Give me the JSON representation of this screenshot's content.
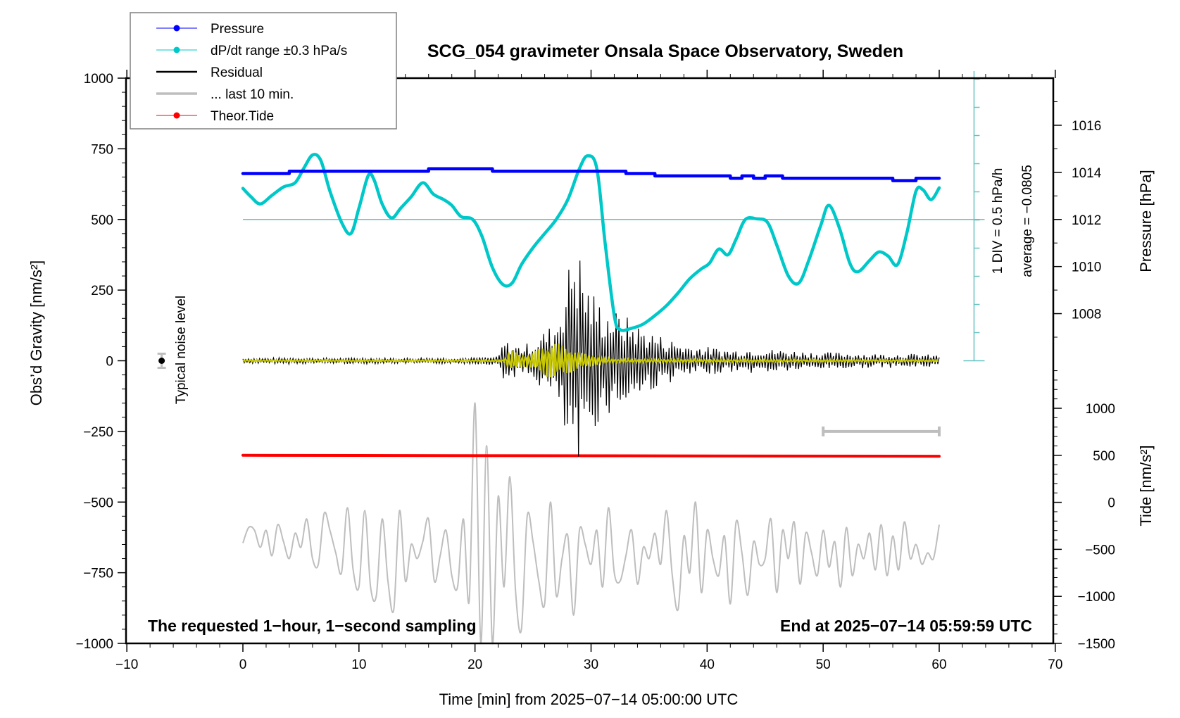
{
  "chart_data": {
    "type": "line",
    "title": "SCG_054 gravimeter Onsala Space Observatory, Sweden",
    "xlabel": "Time [min] from 2025−07−14 05:00:00 UTC",
    "ylabel": "Obs’d Gravity [nm/s²]",
    "xlim": [
      -10,
      70
    ],
    "ylim": [
      -1000,
      1000
    ],
    "x_ticks": [
      "−10",
      "0",
      "10",
      "20",
      "30",
      "40",
      "50",
      "60",
      "70"
    ],
    "x_tick_values": [
      -10,
      0,
      10,
      20,
      30,
      40,
      50,
      60,
      70
    ],
    "y_ticks": [
      "1000",
      "750",
      "500",
      "250",
      "0",
      "−250",
      "−500",
      "−750",
      "−1000"
    ],
    "y_tick_values": [
      1000,
      750,
      500,
      250,
      0,
      -250,
      -500,
      -750,
      -1000
    ],
    "right_axes": {
      "pressure": {
        "label": "Pressure [hPa]",
        "ticks": [
          "1016",
          "1014",
          "1012",
          "1010",
          "1008"
        ],
        "tick_values": [
          1016,
          1014,
          1012,
          1010,
          1008
        ],
        "range_shown": [
          1007,
          1018
        ]
      },
      "tide": {
        "label": "Tide [nm/s²]",
        "ticks": [
          "1000",
          "500",
          "0",
          "−500",
          "−1000",
          "−1500"
        ],
        "tick_values": [
          1000,
          500,
          0,
          -500,
          -1000,
          -1500
        ],
        "range_shown": [
          -1500,
          1500
        ]
      }
    },
    "dpdt_scale": {
      "div_label": "1 DIV = 0.5 hPa/h",
      "average_label": "average = −0.0805",
      "baseline_gravity": 500
    },
    "legend": {
      "position": "top-left",
      "entries": [
        {
          "label": "Pressure",
          "color": "#0000ff",
          "marker": "dot"
        },
        {
          "label": "dP/dt range ±0.3 hPa/s",
          "color": "#00c8c8",
          "marker": "dot"
        },
        {
          "label": "Residual",
          "color": "#000000",
          "marker": "line"
        },
        {
          "label": "... last 10 min.",
          "color": "#bebebe",
          "marker": "line"
        },
        {
          "label": "Theor.Tide",
          "color": "#ff0000",
          "marker": "dot"
        }
      ]
    },
    "annotations": {
      "noise_label": "Typical noise level",
      "noise_point": {
        "x": -7,
        "y": 0,
        "err": 25
      },
      "bottom_left": "The requested 1−hour, 1−second sampling",
      "bottom_right": "End at 2025−07−14 05:59:59 UTC",
      "last10_bar": {
        "x_start": 50,
        "x_end": 60,
        "y": -250
      }
    },
    "series": [
      {
        "name": "Pressure",
        "axis": "pressure",
        "color": "#0000ff",
        "x": [
          0,
          4,
          4,
          16,
          16,
          21.5,
          21.5,
          33,
          33,
          35.5,
          35.5,
          42,
          42,
          43,
          43,
          44,
          44,
          45,
          45,
          46.5,
          46.5,
          56,
          56,
          58,
          58,
          60
        ],
        "values": [
          1013.95,
          1013.95,
          1014.05,
          1014.05,
          1014.15,
          1014.15,
          1014.05,
          1014.05,
          1013.95,
          1013.95,
          1013.85,
          1013.85,
          1013.75,
          1013.75,
          1013.85,
          1013.85,
          1013.75,
          1013.75,
          1013.85,
          1013.85,
          1013.75,
          1013.75,
          1013.65,
          1013.65,
          1013.75,
          1013.75
        ]
      },
      {
        "name": "dP/dt",
        "axis": "gravity",
        "color": "#00c8c8",
        "x": [
          0,
          0.7,
          1.5,
          2.5,
          3.5,
          4.5,
          5.3,
          6,
          6.7,
          7.5,
          8.5,
          9.3,
          10,
          10.8,
          11.3,
          12,
          12.8,
          13.6,
          14.5,
          15.5,
          16.4,
          17.3,
          18,
          18.8,
          19.8,
          20.6,
          21.5,
          22.4,
          23.2,
          24,
          25,
          26,
          27,
          28,
          29,
          29.7,
          30.5,
          31.2,
          32,
          32.5,
          33.5,
          34.5,
          35.5,
          36.5,
          37.5,
          38.5,
          39.5,
          40.2,
          41,
          41.8,
          42.5,
          43.3,
          44.3,
          45.2,
          46,
          47,
          47.9,
          48.8,
          49.8,
          50.5,
          51.4,
          52.3,
          53,
          54,
          54.8,
          55.6,
          56.4,
          57.2,
          58,
          58.6,
          59.3,
          60
        ],
        "values": [
          610,
          580,
          555,
          585,
          615,
          630,
          685,
          728,
          710,
          600,
          490,
          450,
          540,
          655,
          640,
          555,
          505,
          540,
          580,
          630,
          590,
          570,
          550,
          510,
          500,
          440,
          330,
          270,
          275,
          340,
          400,
          450,
          500,
          570,
          680,
          725,
          680,
          420,
          160,
          110,
          115,
          130,
          160,
          195,
          240,
          290,
          325,
          345,
          395,
          375,
          430,
          500,
          502,
          490,
          410,
          300,
          275,
          360,
          480,
          550,
          470,
          345,
          315,
          355,
          385,
          370,
          340,
          450,
          600,
          605,
          570,
          612
        ]
      },
      {
        "name": "Residual envelope",
        "axis": "gravity",
        "color": "#000000",
        "x": [
          0,
          2,
          4,
          6,
          8,
          10,
          12,
          14,
          16,
          18,
          20,
          22,
          22.5,
          23,
          24,
          25,
          26,
          27,
          27.5,
          28,
          28.5,
          29,
          29.5,
          30,
          31,
          32,
          33,
          34,
          35,
          36,
          38,
          40,
          42,
          44,
          46,
          48,
          50,
          52,
          54,
          56,
          58,
          60
        ],
        "values": [
          10,
          10,
          12,
          10,
          10,
          12,
          10,
          10,
          12,
          10,
          12,
          15,
          80,
          60,
          55,
          70,
          110,
          140,
          240,
          320,
          470,
          400,
          300,
          260,
          200,
          180,
          160,
          130,
          110,
          90,
          60,
          50,
          40,
          45,
          40,
          35,
          30,
          30,
          25,
          25,
          25,
          20
        ]
      },
      {
        "name": "Theor.Tide",
        "axis": "tide",
        "color": "#ff0000",
        "x": [
          0,
          60
        ],
        "values": [
          500,
          490
        ]
      },
      {
        "name": "... last 10 min.",
        "axis": "gravity",
        "color": "#bebebe",
        "x": [
          0,
          0.5,
          1,
          1.5,
          2,
          2.5,
          3,
          3.5,
          4,
          4.5,
          5,
          5.5,
          6,
          6.5,
          7,
          7.5,
          8,
          8.5,
          9,
          9.5,
          10,
          10.5,
          11,
          11.5,
          12,
          12.5,
          13,
          13.5,
          14,
          14.5,
          15,
          15.5,
          16,
          16.5,
          17,
          17.5,
          18,
          18.5,
          19,
          19.5,
          20,
          20.5,
          21,
          21.5,
          22,
          22.5,
          23,
          23.5,
          24,
          24.5,
          25,
          25.5,
          26,
          26.5,
          27,
          27.5,
          28,
          28.5,
          29,
          29.5,
          30,
          30.5,
          31,
          31.5,
          32,
          32.5,
          33,
          33.5,
          34,
          34.5,
          35,
          35.5,
          36,
          36.5,
          37,
          37.5,
          38,
          38.5,
          39,
          39.5,
          40,
          40.5,
          41,
          41.5,
          42,
          42.5,
          43,
          43.5,
          44,
          44.5,
          45,
          45.5,
          46,
          46.5,
          47,
          47.5,
          48,
          48.5,
          49,
          49.5,
          50,
          50.5,
          51,
          51.5,
          52,
          52.5,
          53,
          53.5,
          54,
          54.5,
          55,
          55.5,
          56,
          56.5,
          57,
          57.5,
          58,
          58.5,
          59,
          59.5,
          60
        ],
        "values": [
          -645,
          -590,
          -600,
          -660,
          -600,
          -690,
          -580,
          -640,
          -700,
          -610,
          -660,
          -560,
          -700,
          -720,
          -540,
          -600,
          -680,
          -750,
          -520,
          -740,
          -800,
          -530,
          -800,
          -830,
          -560,
          -780,
          -880,
          -530,
          -780,
          -650,
          -700,
          -640,
          -560,
          -780,
          -690,
          -600,
          -760,
          -800,
          -560,
          -850,
          -150,
          -1000,
          -300,
          -1000,
          -480,
          -800,
          -410,
          -820,
          -950,
          -550,
          -640,
          -780,
          -860,
          -500,
          -830,
          -700,
          -620,
          -900,
          -600,
          -650,
          -720,
          -600,
          -800,
          -520,
          -750,
          -780,
          -690,
          -600,
          -790,
          -660,
          -700,
          -610,
          -720,
          -530,
          -760,
          -880,
          -620,
          -750,
          -500,
          -820,
          -600,
          -700,
          -760,
          -620,
          -860,
          -570,
          -680,
          -830,
          -640,
          -720,
          -700,
          -560,
          -820,
          -600,
          -700,
          -570,
          -790,
          -610,
          -680,
          -760,
          -600,
          -730,
          -640,
          -800,
          -590,
          -760,
          -650,
          -700,
          -610,
          -740,
          -580,
          -760,
          -620,
          -740,
          -570,
          -700,
          -650,
          -720,
          -680,
          -700,
          -580
        ]
      },
      {
        "name": "Filtered (yellow)",
        "axis": "gravity",
        "color": "#c8c800",
        "x": [
          0,
          22.5,
          23,
          24,
          25,
          26,
          27,
          28,
          29,
          30,
          31,
          32,
          40,
          50,
          60
        ],
        "values": [
          3,
          3,
          40,
          20,
          30,
          55,
          65,
          45,
          30,
          20,
          10,
          6,
          5,
          4,
          3
        ]
      }
    ]
  }
}
